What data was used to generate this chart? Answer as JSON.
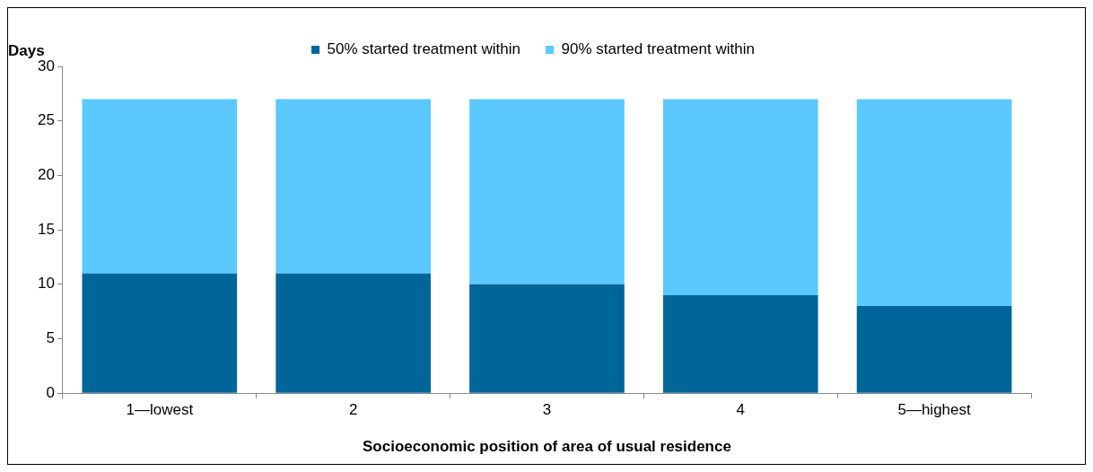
{
  "chart_data": {
    "type": "bar",
    "stacked": true,
    "ylabel": "Days",
    "xlabel": "Socioeconomic position of area of usual residence",
    "categories": [
      "1—lowest",
      "2",
      "3",
      "4",
      "5—highest"
    ],
    "series": [
      {
        "name": "50% started treatment within",
        "color": "#006699",
        "values": [
          11,
          11,
          10,
          9,
          8
        ]
      },
      {
        "name": "90% started treatment within",
        "color": "#5bc8ff",
        "values": [
          16,
          16,
          17,
          18,
          19
        ]
      }
    ],
    "ylim": [
      0,
      30
    ],
    "yticks": [
      0,
      5,
      10,
      15,
      20,
      25,
      30
    ],
    "grid": false,
    "legend": "top"
  }
}
